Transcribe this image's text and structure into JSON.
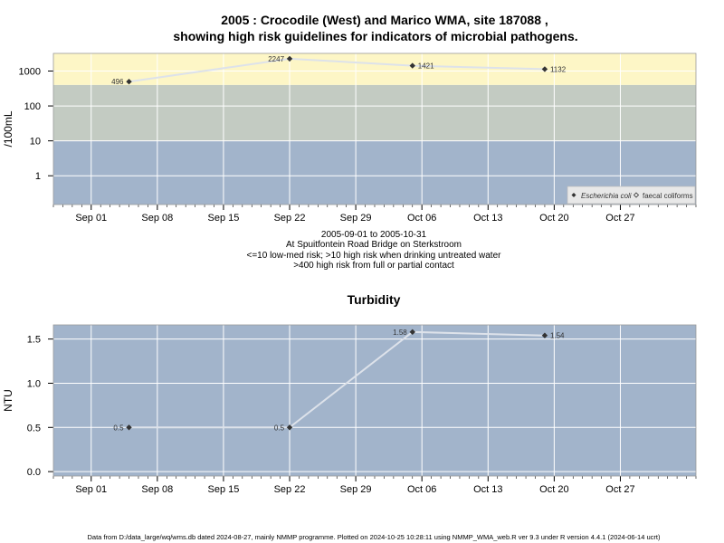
{
  "title_line1": "2005 : Crocodile (West) and Marico WMA, site 187088 ,",
  "title_line2": "showing high risk guidelines for indicators of microbial pathogens.",
  "notes": [
    "2005-09-01 to 2005-10-31",
    "At Spuitfontein Road Bridge on Sterkstroom",
    "<=10 low-med risk; >10 high risk when drinking untreated water",
    ">400 high risk from full or partial contact"
  ],
  "footer": "Data from D:/data_large/wq/wms.db dated 2024-08-27, mainly NMMP programme. Plotted on 2024-10-25 10:28:11 using NMMP_WMA_web.R ver 9.3 under R version 4.4.1 (2024-06-14 ucrt)",
  "colors": {
    "band_low": "#a2b4cb",
    "band_mid": "#c3cbc2",
    "band_high": "#fdf6c6",
    "panel_bg": "#a2b4cb",
    "line": "#dde2ea",
    "grid": "#ffffff",
    "point": "#333333"
  },
  "chart_data": [
    {
      "type": "line",
      "title": "",
      "xlabel": "",
      "ylabel": "/100mL",
      "yscale": "log",
      "ylim": [
        0.15,
        3200
      ],
      "xlim": [
        "2005-08-28",
        "2005-11-04"
      ],
      "x_ticks": [
        "2005-09-01",
        "2005-09-08",
        "2005-09-15",
        "2005-09-22",
        "2005-09-29",
        "2005-10-06",
        "2005-10-13",
        "2005-10-20",
        "2005-10-27"
      ],
      "x_tick_labels": [
        "Sep 01",
        "Sep 08",
        "Sep 15",
        "Sep 22",
        "Sep 29",
        "Oct 06",
        "Oct 13",
        "Oct 20",
        "Oct 27"
      ],
      "y_ticks": [
        1,
        10,
        100,
        1000
      ],
      "y_tick_labels": [
        "1",
        "10",
        "100",
        "1000"
      ],
      "bands": [
        {
          "from": 0.15,
          "to": 10,
          "color": "#a2b4cb"
        },
        {
          "from": 10,
          "to": 400,
          "color": "#c3cbc2"
        },
        {
          "from": 400,
          "to": 3200,
          "color": "#fdf6c6"
        }
      ],
      "series": [
        {
          "name": "Escherichia coli",
          "marker": "filled-diamond",
          "x": [
            "2005-09-05",
            "2005-09-22",
            "2005-10-05",
            "2005-10-19"
          ],
          "y": [
            496,
            2247,
            1421,
            1132
          ],
          "labels": [
            "496",
            "2247",
            "1421",
            "1132"
          ],
          "label_side": [
            "left",
            "left",
            "right",
            "right"
          ]
        }
      ],
      "legend": {
        "placement": "bottom-right",
        "entries": [
          {
            "text": "Escherichia coli",
            "marker": "filled-diamond",
            "italic": true
          },
          {
            "text": "faecal coliforms",
            "marker": "open-diamond",
            "italic": false
          }
        ]
      }
    },
    {
      "type": "line",
      "title": "Turbidity",
      "xlabel": "",
      "ylabel": "NTU",
      "yscale": "linear",
      "ylim": [
        -0.05,
        1.66
      ],
      "xlim": [
        "2005-08-28",
        "2005-11-04"
      ],
      "x_ticks": [
        "2005-09-01",
        "2005-09-08",
        "2005-09-15",
        "2005-09-22",
        "2005-09-29",
        "2005-10-06",
        "2005-10-13",
        "2005-10-20",
        "2005-10-27"
      ],
      "x_tick_labels": [
        "Sep 01",
        "Sep 08",
        "Sep 15",
        "Sep 22",
        "Sep 29",
        "Oct 06",
        "Oct 13",
        "Oct 20",
        "Oct 27"
      ],
      "y_ticks": [
        0,
        0.5,
        1.0,
        1.5
      ],
      "y_tick_labels": [
        "0.0",
        "0.5",
        "1.0",
        "1.5"
      ],
      "series": [
        {
          "name": "",
          "marker": "filled-diamond",
          "x": [
            "2005-09-05",
            "2005-09-22",
            "2005-10-05",
            "2005-10-19"
          ],
          "y": [
            0.5,
            0.5,
            1.58,
            1.54
          ],
          "labels": [
            "0.5",
            "0.5",
            "1.58",
            "1.54"
          ],
          "label_side": [
            "left",
            "left",
            "left",
            "right"
          ]
        }
      ]
    }
  ]
}
